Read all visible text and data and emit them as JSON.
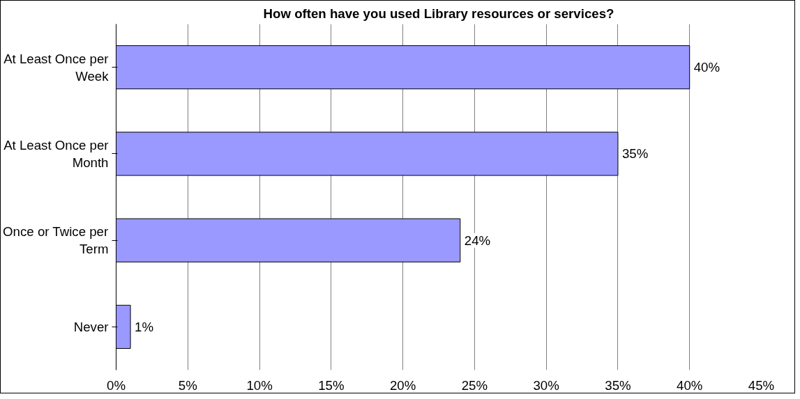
{
  "chart_data": {
    "type": "bar",
    "orientation": "horizontal",
    "title": "How often have you used Library resources or services?",
    "categories": [
      "At Least Once per Week",
      "At Least Once per Month",
      "Once or Twice per Term",
      "Never"
    ],
    "values": [
      40,
      35,
      24,
      1
    ],
    "value_labels": [
      "40%",
      "35%",
      "24%",
      "1%"
    ],
    "color": "#9999ff",
    "xlim": [
      0,
      45
    ],
    "xticks": [
      {
        "value": 0,
        "label": "0%"
      },
      {
        "value": 5,
        "label": "5%"
      },
      {
        "value": 10,
        "label": "10%"
      },
      {
        "value": 15,
        "label": "15%"
      },
      {
        "value": 20,
        "label": "20%"
      },
      {
        "value": 25,
        "label": "25%"
      },
      {
        "value": 30,
        "label": "30%"
      },
      {
        "value": 35,
        "label": "35%"
      },
      {
        "value": 40,
        "label": "40%"
      },
      {
        "value": 45,
        "label": "45%"
      }
    ],
    "grid": "x"
  }
}
